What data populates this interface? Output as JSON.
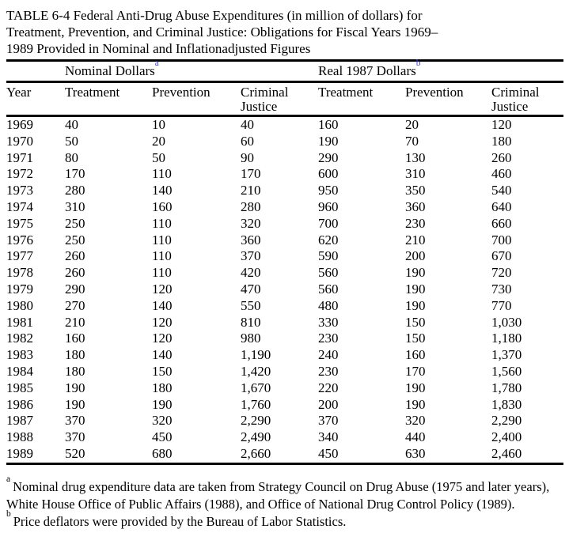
{
  "page": {
    "background": "#ffffff",
    "text_color": "#000000",
    "footnote_link_color": "#3c3cd9"
  },
  "title": {
    "lines": [
      "TABLE 6-4 Federal Anti-Drug Abuse Expenditures (in million of dollars) for",
      "Treatment, Prevention, and Criminal Justice: Obligations for Fiscal Years 1969–",
      "1989 Provided in Nominal and Inflationadjusted Figures"
    ]
  },
  "table": {
    "groups": [
      {
        "label": "Nominal Dollars",
        "marker": "a"
      },
      {
        "label": "Real 1987 Dollars",
        "marker": "b"
      }
    ],
    "columns": [
      "Year",
      "Treatment",
      "Prevention",
      "Criminal Justice",
      "Treatment",
      "Prevention",
      "Criminal Justice"
    ],
    "rows": [
      [
        "1969",
        "40",
        "10",
        "40",
        "160",
        "20",
        "120"
      ],
      [
        "1970",
        "50",
        "20",
        "60",
        "190",
        "70",
        "180"
      ],
      [
        "1971",
        "80",
        "50",
        "90",
        "290",
        "130",
        "260"
      ],
      [
        "1972",
        "170",
        "110",
        "170",
        "600",
        "310",
        "460"
      ],
      [
        "1973",
        "280",
        "140",
        "210",
        "950",
        "350",
        "540"
      ],
      [
        "1974",
        "310",
        "160",
        "280",
        "960",
        "360",
        "640"
      ],
      [
        "1975",
        "250",
        "110",
        "320",
        "700",
        "230",
        "660"
      ],
      [
        "1976",
        "250",
        "110",
        "360",
        "620",
        "210",
        "700"
      ],
      [
        "1977",
        "260",
        "110",
        "370",
        "590",
        "200",
        "670"
      ],
      [
        "1978",
        "260",
        "110",
        "420",
        "560",
        "190",
        "720"
      ],
      [
        "1979",
        "290",
        "120",
        "470",
        "560",
        "190",
        "730"
      ],
      [
        "1980",
        "270",
        "140",
        "550",
        "480",
        "190",
        "770"
      ],
      [
        "1981",
        "210",
        "120",
        "810",
        "330",
        "150",
        "1,030"
      ],
      [
        "1982",
        "160",
        "120",
        "980",
        "230",
        "150",
        "1,180"
      ],
      [
        "1983",
        "180",
        "140",
        "1,190",
        "240",
        "160",
        "1,370"
      ],
      [
        "1984",
        "180",
        "150",
        "1,420",
        "230",
        "170",
        "1,560"
      ],
      [
        "1985",
        "190",
        "180",
        "1,670",
        "220",
        "190",
        "1,780"
      ],
      [
        "1986",
        "190",
        "190",
        "1,760",
        "200",
        "190",
        "1,830"
      ],
      [
        "1987",
        "370",
        "320",
        "2,290",
        "370",
        "320",
        "2,290"
      ],
      [
        "1988",
        "370",
        "450",
        "2,490",
        "340",
        "440",
        "2,400"
      ],
      [
        "1989",
        "520",
        "680",
        "2,660",
        "450",
        "630",
        "2,460"
      ]
    ]
  },
  "footnotes": {
    "a": {
      "marker": "a",
      "text": "Nominal drug expenditure data are taken from Strategy Council on Drug Abuse (1975 and later years), White House Office of Public Affairs (1988), and Office of National Drug Control Policy (1989)."
    },
    "b": {
      "marker": "b",
      "text": "Price deflators were provided by the Bureau of Labor Statistics."
    }
  }
}
